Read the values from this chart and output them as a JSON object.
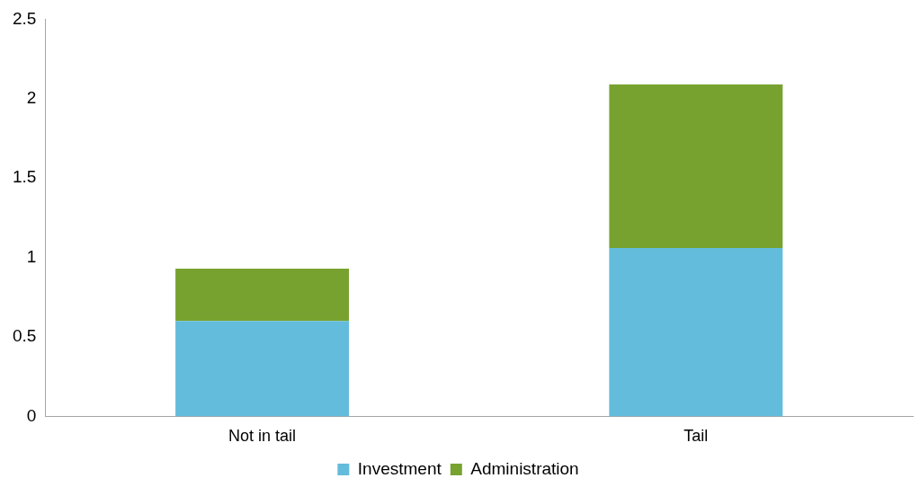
{
  "chart_data": {
    "type": "bar",
    "stacked": true,
    "categories": [
      "Not in tail",
      "Tail"
    ],
    "series": [
      {
        "name": "Investment",
        "color": "#63bcdb",
        "values": [
          0.6,
          1.06
        ]
      },
      {
        "name": "Administration",
        "color": "#78a22f",
        "values": [
          0.33,
          1.03
        ]
      }
    ],
    "ylim": [
      0,
      2.5
    ],
    "yticks": [
      0,
      0.5,
      1,
      1.5,
      2,
      2.5
    ],
    "grid": false,
    "legend": "bottom"
  }
}
